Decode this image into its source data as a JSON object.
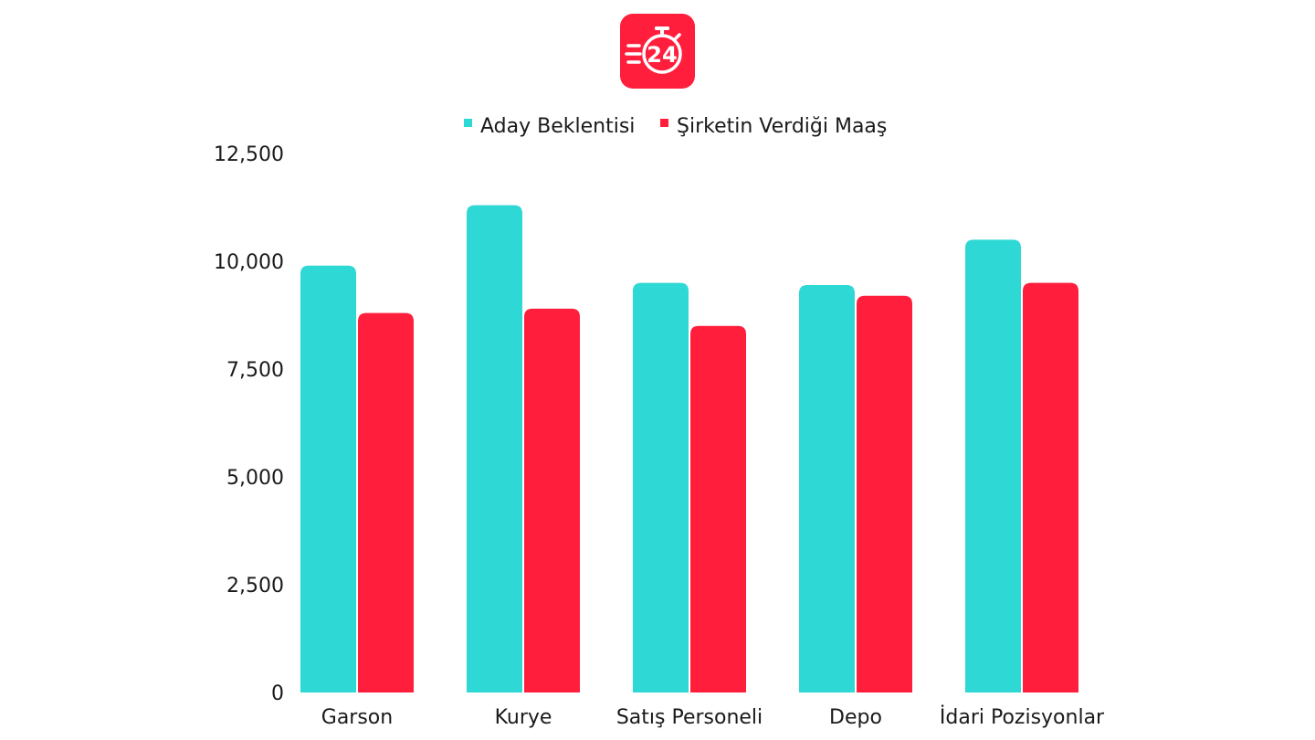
{
  "logo": {
    "icon": "stopwatch-24-icon",
    "text": "24",
    "color": "#ff1e3c"
  },
  "chart_data": {
    "type": "bar",
    "title": "",
    "xlabel": "",
    "ylabel": "",
    "categories": [
      "Garson",
      "Kurye",
      "Satış Personeli",
      "Depo",
      "İdari Pozisyonlar"
    ],
    "series": [
      {
        "name": "Aday Beklentisi",
        "color": "#2ed8d4",
        "values": [
          9900,
          11300,
          9500,
          9450,
          10500
        ]
      },
      {
        "name": "Şirketin Verdiği Maaş",
        "color": "#ff1e3c",
        "values": [
          8800,
          8900,
          8500,
          9200,
          9500
        ]
      }
    ],
    "ylim": [
      0,
      12500
    ],
    "yticks": [
      0,
      2500,
      5000,
      7500,
      10000,
      12500
    ],
    "ytick_labels": [
      "0",
      "2,500",
      "5,000",
      "7,500",
      "10,000",
      "12,500"
    ],
    "grid": false,
    "legend_position": "top-center"
  }
}
